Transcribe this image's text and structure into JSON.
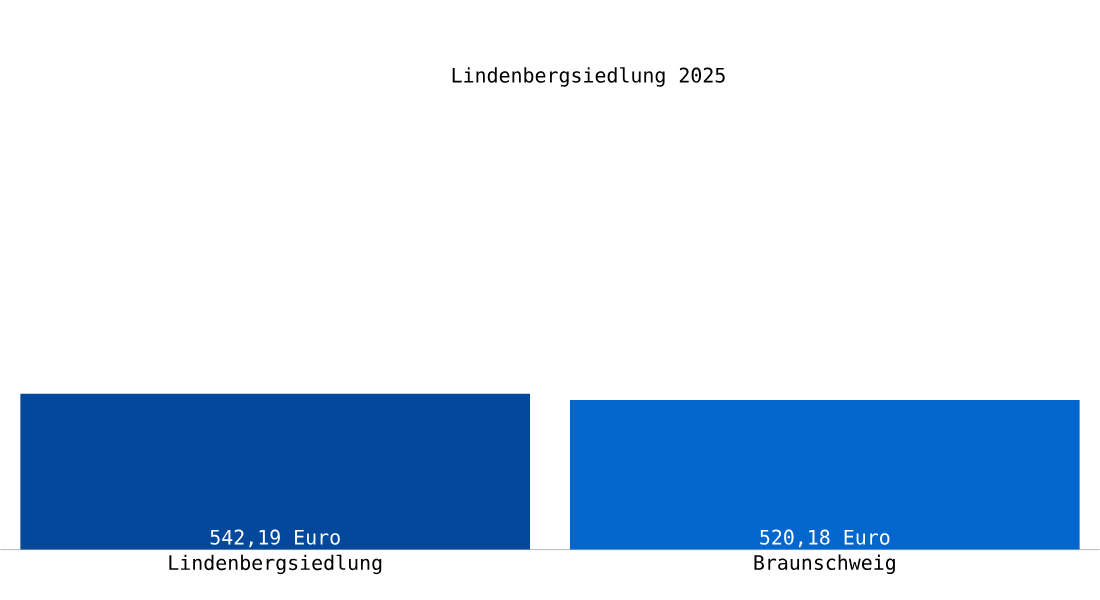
{
  "chart_data": {
    "type": "bar",
    "title": "Lindenbergsiedlung 2025",
    "categories": [
      "Lindenbergsiedlung",
      "Braunschweig"
    ],
    "values": [
      542.19,
      520.18
    ],
    "colors": [
      "#03489a",
      "#0366cc"
    ],
    "value_labels": [
      "542,19 Euro",
      "520,18 Euro"
    ]
  }
}
